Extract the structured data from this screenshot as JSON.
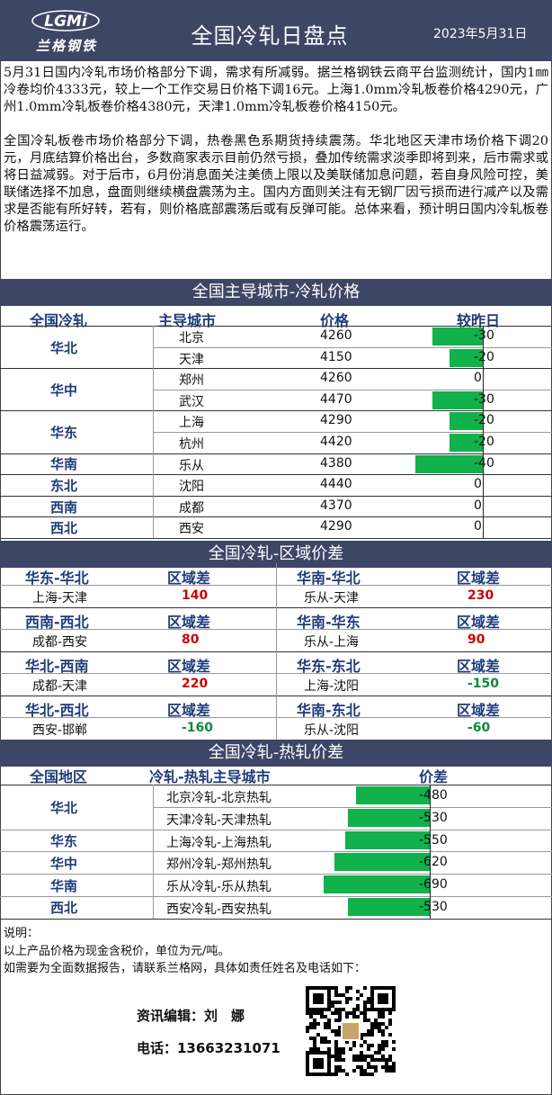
{
  "header": {
    "brand_mark": "LGMi",
    "brand": "兰格钢铁",
    "title": "全国冷轧日盘点",
    "date": "2023年5月31日"
  },
  "intro": [
    "5月31日国内冷轧市场价格部分下调，需求有所减弱。据兰格钢铁云商平台监测统计，国内1㎜冷卷均价4333元，较上一个工作交易日价格下调16元。上海1.0mm冷轧板卷价格4290元，广州1.0mm冷轧板卷价格4380元，天津1.0mm冷轧板卷价格4150元。",
    "全国冷轧板卷市场价格部分下调，热卷黑色系期货持续震荡。华北地区天津市场价格下调20元，月底结算价格出台，多数商家表示目前仍然亏损，叠加传统需求淡季即将到来，后市需求或将日益减弱。对于后市，6月份消息面关注美债上限以及美联储加息问题，若自身风险可控，美联储选择不加息，盘面则继续横盘震荡为主。国内方面则关注有无钢厂因亏损而进行减产以及需求是否能有所好转，若有，则价格底部震荡后或有反弹可能。总体来看，预计明日国内冷轧板卷价格震荡运行。"
  ],
  "sec1": {
    "title": "全国主导城市-冷轧价格",
    "headers": [
      "全国冷轧",
      "主导城市",
      "价格",
      "较昨日"
    ],
    "regions": [
      "华北",
      "华中",
      "华东",
      "华南",
      "东北",
      "西南",
      "西北"
    ],
    "rows": [
      {
        "city": "北京",
        "price": "4260",
        "change": -30
      },
      {
        "city": "天津",
        "price": "4150",
        "change": -20
      },
      {
        "city": "郑州",
        "price": "4260",
        "change": 0
      },
      {
        "city": "武汉",
        "price": "4470",
        "change": -30
      },
      {
        "city": "上海",
        "price": "4290",
        "change": -20
      },
      {
        "city": "杭州",
        "price": "4420",
        "change": -20
      },
      {
        "city": "乐从",
        "price": "4380",
        "change": -40
      },
      {
        "city": "沈阳",
        "price": "4440",
        "change": 0
      },
      {
        "city": "成都",
        "price": "4370",
        "change": 0
      },
      {
        "city": "西安",
        "price": "4290",
        "change": 0
      }
    ]
  },
  "sec2": {
    "title": "全国冷轧-区域价差",
    "diff_label": "区域差",
    "blocks": [
      {
        "left_head": "华东-华北",
        "left_pair": "上海-天津",
        "left_val": "140",
        "left_color": "#d00000",
        "right_head": "华南-华北",
        "right_pair": "乐从-天津",
        "right_val": "230",
        "right_color": "#d00000"
      },
      {
        "left_head": "西南-西北",
        "left_pair": "成都-西安",
        "left_val": "80",
        "left_color": "#d00000",
        "right_head": "华南-华东",
        "right_pair": "乐从-上海",
        "right_val": "90",
        "right_color": "#d00000"
      },
      {
        "left_head": "华北-西南",
        "left_pair": "成都-天津",
        "left_val": "220",
        "left_color": "#d00000",
        "right_head": "华东-东北",
        "right_pair": "上海-沈阳",
        "right_val": "-150",
        "right_color": "#0a8c3a"
      },
      {
        "left_head": "华北-西北",
        "left_pair": "西安-邯郸",
        "left_val": "-160",
        "left_color": "#0a8c3a",
        "right_head": "华南-东北",
        "right_pair": "乐从-沈阳",
        "right_val": "-60",
        "right_color": "#0a8c3a"
      }
    ]
  },
  "sec3": {
    "title": "全国冷轧-热轧价差",
    "headers": [
      "全国地区",
      "冷轧-热轧主导城市",
      "价差"
    ],
    "rows": [
      {
        "region": "华北",
        "pair": "北京冷轧-北京热轧",
        "value": -480
      },
      {
        "region": "",
        "pair": "天津冷轧-天津热轧",
        "value": -530
      },
      {
        "region": "华东",
        "pair": "上海冷轧-上海热轧",
        "value": -550
      },
      {
        "region": "华中",
        "pair": "郑州冷轧-郑州热轧",
        "value": -620
      },
      {
        "region": "华南",
        "pair": "乐从冷轧-乐从热轧",
        "value": -690
      },
      {
        "region": "西北",
        "pair": "西安冷轧-西安热轧",
        "value": -530
      }
    ]
  },
  "footer": {
    "note_title": "说明：",
    "note1": "以上产品价格为现金含税价，单位为元/吨。",
    "note2": "如需要为全面数据报告，请联系兰格网，具体如责任姓名及电话如下：",
    "editor": "资讯编辑：刘　娜",
    "phone": "电话：13663231071"
  },
  "colors": {
    "header_bg": "#3e4666",
    "bar": "#11b14c",
    "positive": "#d00000",
    "negative": "#0a8c3a"
  },
  "chart_data": [
    {
      "type": "bar",
      "categories": [
        "北京",
        "天津",
        "郑州",
        "武汉",
        "上海",
        "杭州",
        "乐从",
        "沈阳",
        "成都",
        "西安"
      ],
      "values": [
        -30,
        -20,
        0,
        -30,
        -20,
        -20,
        -40,
        0,
        0,
        0
      ]
    },
    {
      "type": "bar",
      "categories": [
        "北京冷轧-北京热轧",
        "天津冷轧-天津热轧",
        "上海冷轧-上海热轧",
        "郑州冷轧-郑州热轧",
        "乐从冷轧-乐从热轧",
        "西安冷轧-西安热轧"
      ],
      "values": [
        -480,
        -530,
        -550,
        -620,
        -690,
        -530
      ]
    }
  ]
}
